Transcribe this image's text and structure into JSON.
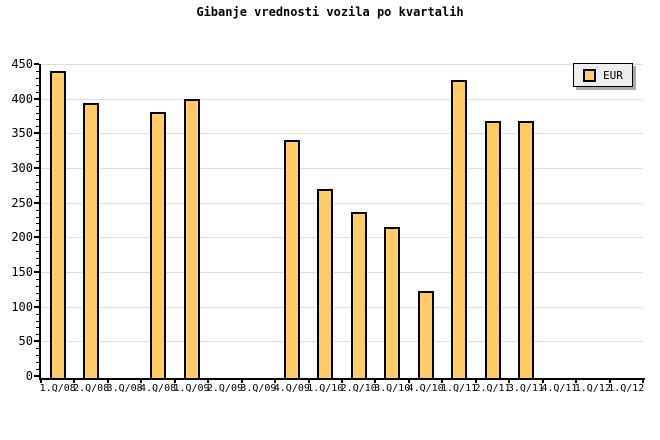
{
  "title": "Gibanje vrednosti vozila po kvartalih",
  "legend": {
    "label": "EUR",
    "swatch_color": "#FFCC66",
    "background": "#EEEEEE",
    "shadow_color": "#AAAAAA"
  },
  "chart_data": {
    "type": "bar",
    "title": "Gibanje vrednosti vozila po kvartalih",
    "xlabel": "",
    "ylabel": "",
    "categories": [
      "1.Q/08",
      "2.Q/08",
      "3.Q/08",
      "4.Q/08",
      "1.Q/09",
      "2.Q/09",
      "3.Q/09",
      "4.Q/09",
      "1.Q/10",
      "2.Q/10",
      "3.Q/10",
      "4.Q/10",
      "1.Q/11",
      "2.Q/11",
      "3.Q/11",
      "4.Q/11",
      "1.Q/12",
      "1.Q/12"
    ],
    "series": [
      {
        "name": "EUR",
        "values": [
          443,
          396,
          null,
          383,
          403,
          null,
          null,
          343,
          272,
          239,
          218,
          125,
          430,
          371,
          371,
          null,
          null,
          null
        ]
      }
    ],
    "ylim": [
      0,
      450
    ],
    "y_tick_labels": [
      "0",
      "50",
      "100",
      "150",
      "200",
      "250",
      "300",
      "350",
      "400",
      "450"
    ],
    "y_major_step": 50,
    "y_minor_step": 10,
    "grid": true,
    "legend_position": "top-right",
    "colors": {
      "bar_fill": "#FFCC66",
      "bar_border": "#000000",
      "gridline": "#DDDDDD",
      "axis": "#000000"
    }
  }
}
